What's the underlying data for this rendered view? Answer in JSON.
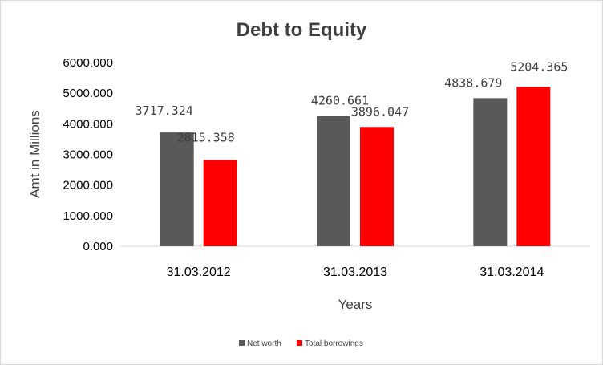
{
  "chart_data": {
    "type": "bar",
    "title": "Debt to Equity",
    "xlabel": "Years",
    "ylabel": "Amt in Millions",
    "categories": [
      "31.03.2012",
      "31.03.2013",
      "31.03.2014"
    ],
    "series": [
      {
        "name": "Net worth",
        "color": "#595959",
        "values": [
          3717.324,
          4260.661,
          4838.679
        ],
        "labels": [
          "3717.324",
          "4260.661",
          "4838.679"
        ]
      },
      {
        "name": "Total borrowings",
        "color": "#ff0000",
        "values": [
          2815.358,
          3896.047,
          5204.365
        ],
        "labels": [
          "2815.358",
          "3896.047",
          "5204.365"
        ]
      }
    ],
    "ylim": [
      0,
      6000
    ],
    "yticks": [
      "0.000",
      "1000.000",
      "2000.000",
      "3000.000",
      "4000.000",
      "5000.000",
      "6000.000"
    ],
    "grid": false,
    "legend_position": "bottom"
  }
}
